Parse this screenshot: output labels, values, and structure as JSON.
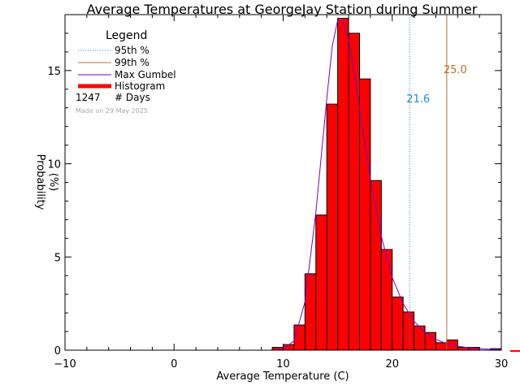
{
  "chart_data": {
    "type": "bar",
    "title": "Average Temperatures at GeorgeJay Station during Summer",
    "xlabel": "Average Temperature (C)",
    "ylabel_line1": "Probability",
    "ylabel_line2": "(%)",
    "xlim": [
      -10,
      30
    ],
    "ylim": [
      0,
      18
    ],
    "x_ticks": [
      -10,
      0,
      10,
      20,
      30
    ],
    "y_ticks": [
      0,
      5,
      10,
      15
    ],
    "bin_width": 1,
    "histogram": {
      "name": "Histogram",
      "color": "#ff0000",
      "bins_left_edge": [
        9,
        10,
        11,
        12,
        13,
        14,
        15,
        16,
        17,
        18,
        19,
        20,
        21,
        22,
        23,
        24,
        25,
        26,
        27,
        28,
        29
      ],
      "values": [
        0.15,
        0.3,
        1.35,
        4.1,
        7.25,
        13.2,
        17.8,
        17.0,
        14.55,
        9.1,
        5.4,
        2.85,
        2.05,
        1.3,
        0.95,
        0.4,
        0.55,
        0.15,
        0.15,
        0.0,
        0.08
      ]
    },
    "gumbel": {
      "name": "Max Gumbel",
      "color": "#7700cc",
      "x": [
        9,
        10,
        11,
        12,
        13,
        14,
        14.5,
        15,
        15.5,
        16,
        16.5,
        17,
        18,
        19,
        20,
        21,
        22,
        23,
        24,
        25,
        26,
        27,
        28,
        29,
        30
      ],
      "y": [
        0.0,
        0.05,
        0.5,
        2.6,
        7.4,
        13.5,
        16.3,
        17.7,
        17.6,
        16.6,
        15.0,
        13.0,
        9.2,
        6.1,
        3.9,
        2.5,
        1.55,
        0.95,
        0.58,
        0.35,
        0.21,
        0.13,
        0.08,
        0.05,
        0.03
      ]
    },
    "lines": [
      {
        "name": "95th %",
        "x": 21.6,
        "label": "21.6",
        "color": "#1a8fd8",
        "style": "dotted"
      },
      {
        "name": "99th %",
        "x": 25.0,
        "label": "25.0",
        "color": "#b8702a",
        "style": "solid"
      }
    ],
    "legend": {
      "title": "Legend",
      "placement": "top-left",
      "days_count": "1247",
      "days_label": "# Days",
      "made_on": "Made on 29 May 2025"
    }
  }
}
